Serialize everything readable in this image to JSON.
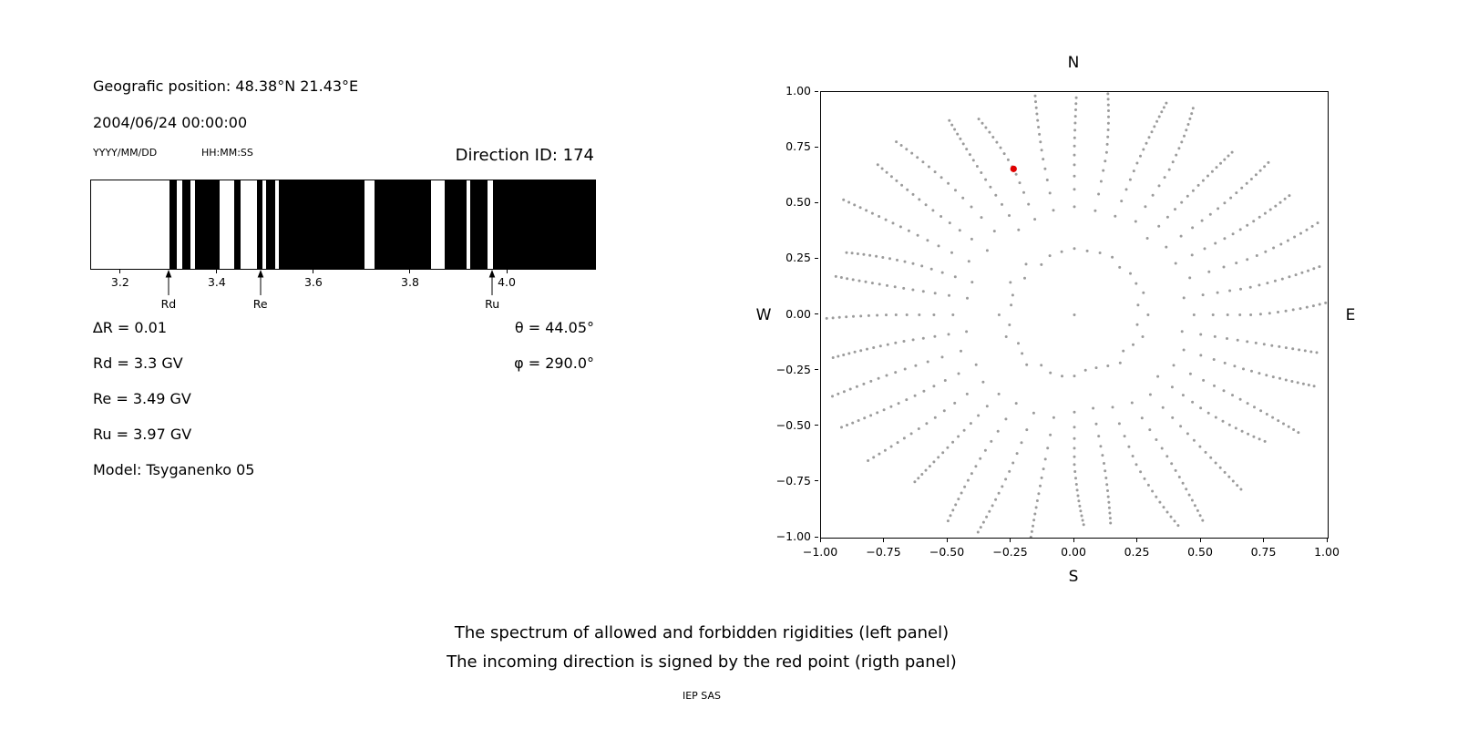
{
  "left_panel": {
    "geo_position": "Geografic position: 48.38°N 21.43°E",
    "datetime": "2004/06/24 00:00:00",
    "date_format": "YYYY/MM/DD",
    "time_format": "HH:MM:SS",
    "direction_id": "Direction ID: 174",
    "stats_left": [
      "∆R = 0.01",
      "Rd = 3.3 GV",
      "Re = 3.49 GV",
      "Ru = 3.97 GV",
      "Model: Tsyganenko 05"
    ],
    "stats_right": [
      "θ = 44.05°",
      "φ = 290.0°"
    ]
  },
  "chart_data": [
    {
      "type": "bar",
      "panel": "left",
      "content": "spectrum of allowed (black) and forbidden (white) rigidities in GV",
      "xlim": [
        3.138,
        4.181
      ],
      "xticks": [
        3.2,
        3.4,
        3.6,
        3.8,
        4.0
      ],
      "xtick_labels": [
        "3.2",
        "3.4",
        "3.6",
        "3.8",
        "4.0"
      ],
      "black_segments_gv": [
        [
          3.3,
          3.315
        ],
        [
          3.326,
          3.343
        ],
        [
          3.353,
          3.404
        ],
        [
          3.434,
          3.447
        ],
        [
          3.481,
          3.492
        ],
        [
          3.5,
          3.519
        ],
        [
          3.526,
          3.704
        ],
        [
          3.725,
          3.842
        ],
        [
          3.87,
          3.915
        ],
        [
          3.923,
          3.958
        ],
        [
          3.97,
          4.181
        ]
      ],
      "markers": [
        {
          "label": "Rd",
          "rigidity_gv": 3.3
        },
        {
          "label": "Re",
          "rigidity_gv": 3.49
        },
        {
          "label": "Ru",
          "rigidity_gv": 3.97
        }
      ]
    },
    {
      "type": "scatter",
      "panel": "right",
      "content": "incoming direction map; gray dotted radial spokes, red point marks incoming direction",
      "xlim": [
        -1.0,
        1.0
      ],
      "ylim": [
        -1.0,
        1.0
      ],
      "xticks": [
        -1.0,
        -0.75,
        -0.5,
        -0.25,
        0.0,
        0.25,
        0.5,
        0.75,
        1.0
      ],
      "xtick_labels": [
        "−1.00",
        "−0.75",
        "−0.50",
        "−0.25",
        "0.00",
        "0.25",
        "0.50",
        "0.75",
        "1.00"
      ],
      "yticks": [
        1.0,
        0.75,
        0.5,
        0.25,
        0.0,
        -0.25,
        -0.5,
        -0.75,
        -1.0
      ],
      "ytick_labels": [
        "1.00",
        "0.75",
        "0.50",
        "0.25",
        "0.00",
        "−0.25",
        "−0.50",
        "−0.75",
        "−1.00"
      ],
      "direction_labels": {
        "top": "N",
        "bottom": "S",
        "left": "W",
        "right": "E"
      },
      "grid": false,
      "point_color": "#8a8a8a",
      "spokes": {
        "count": 36,
        "start_angle_deg": 0,
        "r_min": 0.25,
        "r_max": 1.0,
        "points_per_spoke": 16,
        "density_power": 0.5,
        "curvature_deg": 5
      },
      "center_point": {
        "x": 0,
        "y": 0
      },
      "red_point": {
        "x": -0.24,
        "y": 0.655,
        "color": "#e00000"
      }
    }
  ],
  "caption": {
    "line1": "The spectrum of allowed and forbidden rigidities (left panel)",
    "line2": "The incoming direction is signed by the red point (rigth panel)",
    "credit": "IEP SAS"
  }
}
